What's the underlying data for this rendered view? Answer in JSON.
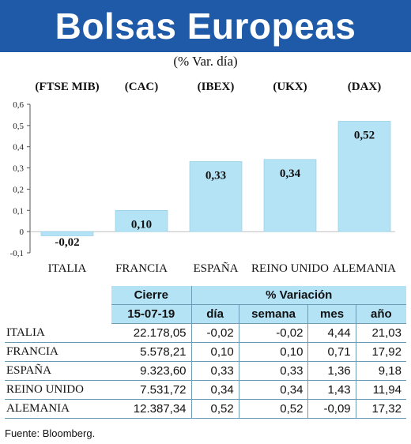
{
  "header": {
    "title": "Bolsas Europeas",
    "subtitle": "(% Var. día)"
  },
  "chart_data": {
    "type": "bar",
    "index_labels": [
      "(FTSE MIB)",
      "(CAC)",
      "(IBEX)",
      "(UKX)",
      "(DAX)"
    ],
    "categories": [
      "ITALIA",
      "FRANCIA",
      "ESPAÑA",
      "REINO UNIDO",
      "ALEMANIA"
    ],
    "values": [
      -0.02,
      0.1,
      0.33,
      0.34,
      0.52
    ],
    "value_labels": [
      "-0,02",
      "0,10",
      "0,33",
      "0,34",
      "0,52"
    ],
    "y_ticks": [
      "0,6",
      "0,5",
      "0,4",
      "0,3",
      "0,2",
      "0,1",
      "0",
      "-0,1"
    ],
    "ylim": [
      -0.1,
      0.6
    ],
    "bar_color": "#b4e3f6",
    "grid": false
  },
  "table": {
    "header_cierre": "Cierre",
    "header_variacion": "% Variación",
    "date": "15-07-19",
    "col_dia": "día",
    "col_semana": "semana",
    "col_mes": "mes",
    "col_anio": "año",
    "rows": [
      {
        "name": "ITALIA",
        "cierre": "22.178,05",
        "dia": "-0,02",
        "semana": "-0,02",
        "mes": "4,44",
        "anio": "21,03"
      },
      {
        "name": "FRANCIA",
        "cierre": "5.578,21",
        "dia": "0,10",
        "semana": "0,10",
        "mes": "0,71",
        "anio": "17,92"
      },
      {
        "name": "ESPAÑA",
        "cierre": "9.323,60",
        "dia": "0,33",
        "semana": "0,33",
        "mes": "1,36",
        "anio": "9,18"
      },
      {
        "name": "REINO UNIDO",
        "cierre": "7.531,72",
        "dia": "0,34",
        "semana": "0,34",
        "mes": "1,43",
        "anio": "11,94"
      },
      {
        "name": "ALEMANIA",
        "cierre": "12.387,34",
        "dia": "0,52",
        "semana": "0,52",
        "mes": "-0,09",
        "anio": "17,32"
      }
    ]
  },
  "source": "Fuente: Bloomberg.",
  "colors": {
    "banner": "#1e5aa8",
    "accent": "#b4e3f6"
  }
}
